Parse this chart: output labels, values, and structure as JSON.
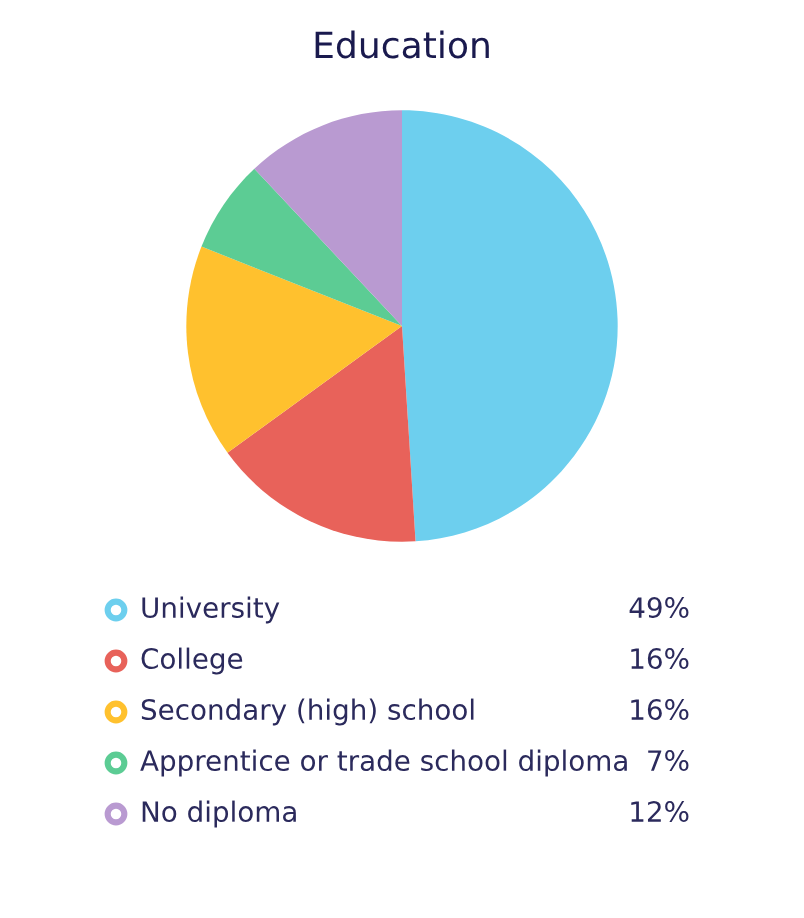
{
  "chart_data": {
    "type": "pie",
    "title": "Education",
    "categories": [
      "University",
      "College",
      "Secondary (high) school",
      "Apprentice or trade school diploma",
      "No diploma"
    ],
    "values": [
      49,
      16,
      16,
      7,
      12
    ],
    "value_labels": [
      "49%",
      "16%",
      "16%",
      "7%",
      "12%"
    ],
    "colors": [
      "#6dcfee",
      "#e8625a",
      "#ffc12e",
      "#5ccc94",
      "#b99ad1"
    ],
    "legend": "bottom"
  }
}
